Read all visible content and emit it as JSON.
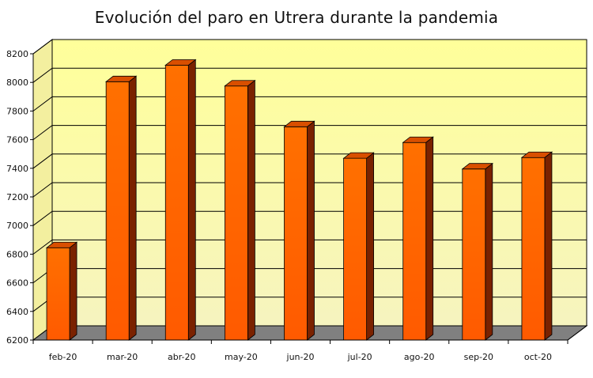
{
  "chart_data": {
    "type": "bar",
    "title": "Evolución del paro en Utrera durante la pandemia",
    "xlabel": "",
    "ylabel": "",
    "categories": [
      "feb-20",
      "mar-20",
      "abr-20",
      "may-20",
      "jun-20",
      "jul-20",
      "ago-20",
      "sep-20",
      "oct-20"
    ],
    "values": [
      6845,
      8005,
      8120,
      7975,
      7690,
      7470,
      7580,
      7395,
      7475
    ],
    "ylim": [
      6200,
      8200
    ],
    "yticks": [
      6200,
      6400,
      6600,
      6800,
      7000,
      7200,
      7400,
      7600,
      7800,
      8000,
      8200
    ],
    "grid": true,
    "legend": "none",
    "style": "3d",
    "colors": {
      "bar_front": "#ff6a00",
      "bar_top": "#d94f00",
      "bar_side": "#7a2200",
      "wall": "#ffff99",
      "floor": "#808080",
      "gridline": "#000000"
    }
  }
}
